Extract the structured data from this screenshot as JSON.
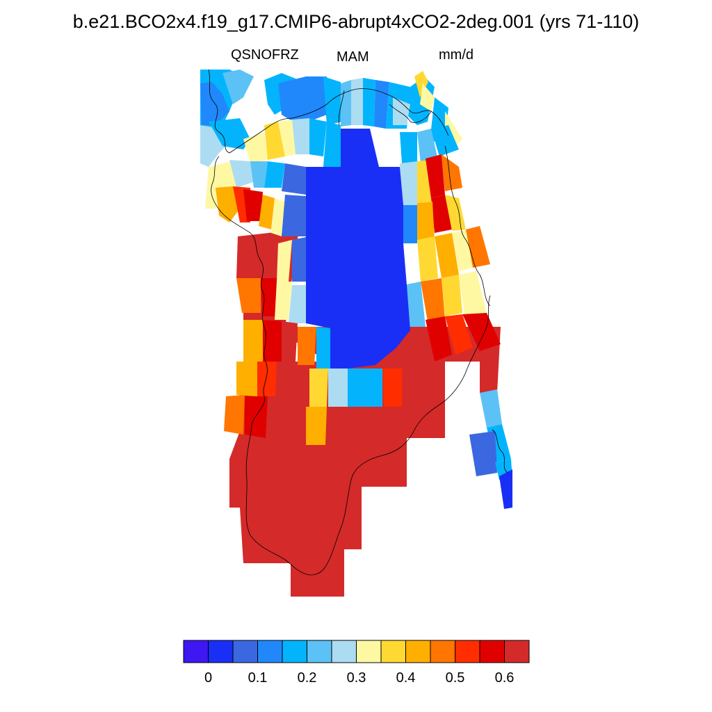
{
  "title": "b.e21.BCO2x4.f19_g17.CMIP6-abrupt4xCO2-2deg.001 (yrs 71-110)",
  "labels": {
    "left": "QSNOFRZ",
    "center": "MAM",
    "right": "mm/d"
  },
  "colorbar": {
    "colors": [
      "#3e17f2",
      "#1a2ff5",
      "#3b68e0",
      "#2088fb",
      "#03b4fd",
      "#5cc2f5",
      "#acdcf2",
      "#fff8a3",
      "#ffd932",
      "#ffaf00",
      "#ff7600",
      "#ff2d00",
      "#e00000",
      "#d42a2a"
    ],
    "tick_labels": [
      "0",
      "0.1",
      "0.2",
      "0.3",
      "0.4",
      "0.5",
      "0.6"
    ]
  },
  "map": {
    "region": "Greenland",
    "field": "QSNOFRZ",
    "season": "MAM",
    "units": "mm/d"
  }
}
